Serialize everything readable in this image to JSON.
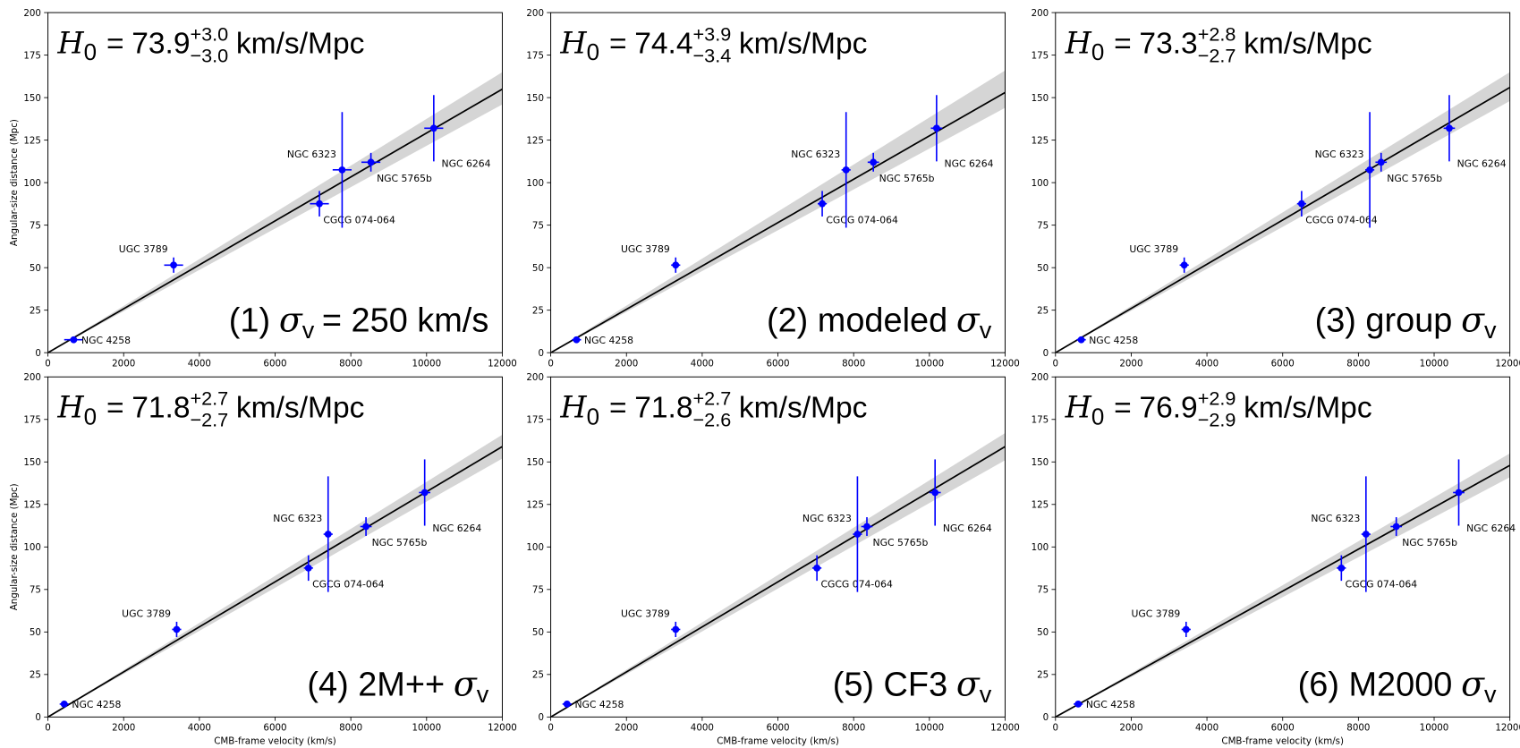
{
  "common": {
    "h0_symbol": "H",
    "h0_symbol_sub": "0",
    "equals": "=",
    "unit": "km/s/Mpc",
    "sigma": "σ",
    "sigma_sub": "v"
  },
  "chart_data": [
    {
      "type": "scatter",
      "h0": 73.9,
      "h0_plus": "+3.0",
      "h0_minus": "−3.0",
      "panel_label": "(1)",
      "label_suffix": "= 250 km/s",
      "y_label": "Angular-size distance (Mpc)",
      "names": [
        "NGC 4258",
        "UGC 3789",
        "CGCG 074-064",
        "NGC 6323",
        "NGC 5765b",
        "NGC 6264"
      ],
      "x": [
        680,
        3320,
        7170,
        7770,
        8530,
        10190
      ],
      "xerr": [
        250,
        250,
        250,
        250,
        250,
        250
      ],
      "y": [
        7.6,
        51.5,
        87.6,
        107.5,
        112,
        132
      ],
      "yerr": [
        0.3,
        4.5,
        7.5,
        34,
        5.5,
        19.5
      ],
      "fit_x": [
        0,
        12000
      ],
      "fit_y": [
        0,
        155
      ],
      "band_end": [
        146,
        165
      ],
      "color": "#0000ff",
      "fit_color": "#000000",
      "band_color": "#888888",
      "xlim": [
        0,
        12000
      ],
      "ylim": [
        0,
        200
      ],
      "xticks": [
        0,
        2000,
        4000,
        6000,
        8000,
        10000,
        12000
      ],
      "yticks": [
        0,
        25,
        50,
        75,
        100,
        125,
        150,
        175,
        200
      ]
    },
    {
      "type": "scatter",
      "h0": 74.4,
      "h0_plus": "+3.9",
      "h0_minus": "−3.4",
      "panel_label": "(2) modeled",
      "names": [
        "NGC 4258",
        "UGC 3789",
        "CGCG 074-064",
        "NGC 6323",
        "NGC 5765b",
        "NGC 6264"
      ],
      "x": [
        680,
        3300,
        7170,
        7800,
        8520,
        10190
      ],
      "xerr": [
        120,
        120,
        120,
        120,
        150,
        150
      ],
      "y": [
        7.6,
        51.5,
        87.6,
        107.5,
        112,
        132
      ],
      "yerr": [
        0.3,
        4.5,
        7.5,
        34,
        5.5,
        19.5
      ],
      "fit_x": [
        0,
        12000
      ],
      "fit_y": [
        0,
        153
      ],
      "band_end": [
        144,
        166
      ],
      "color": "#0000ff",
      "fit_color": "#000000",
      "band_color": "#888888",
      "xlim": [
        0,
        12000
      ],
      "ylim": [
        0,
        200
      ],
      "xticks": [
        0,
        2000,
        4000,
        6000,
        8000,
        10000,
        12000
      ],
      "yticks": [
        0,
        25,
        50,
        75,
        100,
        125,
        150,
        175,
        200
      ]
    },
    {
      "type": "scatter",
      "h0": 73.3,
      "h0_plus": "+2.8",
      "h0_minus": "−2.7",
      "panel_label": "(3) group",
      "names": [
        "NGC 4258",
        "UGC 3789",
        "CGCG 074-064",
        "NGC 6323",
        "NGC 5765b",
        "NGC 6264"
      ],
      "x": [
        680,
        3400,
        6500,
        8300,
        8600,
        10400
      ],
      "xerr": [
        120,
        120,
        120,
        120,
        150,
        150
      ],
      "y": [
        7.6,
        51.5,
        87.6,
        107.5,
        112,
        132
      ],
      "yerr": [
        0.3,
        4.5,
        7.5,
        34,
        5.5,
        19.5
      ],
      "fit_x": [
        0,
        12000
      ],
      "fit_y": [
        0,
        156
      ],
      "band_end": [
        148,
        165
      ],
      "color": "#0000ff",
      "fit_color": "#000000",
      "band_color": "#888888",
      "xlim": [
        0,
        12000
      ],
      "ylim": [
        0,
        200
      ],
      "xticks": [
        0,
        2000,
        4000,
        6000,
        8000,
        10000,
        12000
      ],
      "yticks": [
        0,
        25,
        50,
        75,
        100,
        125,
        150,
        175,
        200
      ]
    },
    {
      "type": "scatter",
      "h0": 71.8,
      "h0_plus": "+2.7",
      "h0_minus": "−2.7",
      "panel_label": "(4) 2M++",
      "x_label": "CMB-frame velocity (km/s)",
      "y_label": "Angular-size distance (Mpc)",
      "names": [
        "NGC 4258",
        "UGC 3789",
        "CGCG 074-064",
        "NGC 6323",
        "NGC 5765b",
        "NGC 6264"
      ],
      "x": [
        430,
        3400,
        6880,
        7400,
        8400,
        9950
      ],
      "xerr": [
        120,
        120,
        120,
        120,
        150,
        150
      ],
      "y": [
        7.6,
        51.5,
        87.6,
        107.5,
        112,
        132
      ],
      "yerr": [
        0.3,
        4.5,
        7.5,
        34,
        5.5,
        19.5
      ],
      "fit_x": [
        0,
        12000
      ],
      "fit_y": [
        0,
        159
      ],
      "band_end": [
        152,
        166
      ],
      "color": "#0000ff",
      "fit_color": "#000000",
      "band_color": "#888888",
      "xlim": [
        0,
        12000
      ],
      "ylim": [
        0,
        200
      ],
      "xticks": [
        0,
        2000,
        4000,
        6000,
        8000,
        10000,
        12000
      ],
      "yticks": [
        0,
        25,
        50,
        75,
        100,
        125,
        150,
        175,
        200
      ]
    },
    {
      "type": "scatter",
      "h0": 71.8,
      "h0_plus": "+2.7",
      "h0_minus": "−2.6",
      "panel_label": "(5) CF3",
      "x_label": "CMB-frame velocity (km/s)",
      "names": [
        "NGC 4258",
        "UGC 3789",
        "CGCG 074-064",
        "NGC 6323",
        "NGC 5765b",
        "NGC 6264"
      ],
      "x": [
        430,
        3300,
        7030,
        8100,
        8350,
        10150
      ],
      "xerr": [
        120,
        120,
        120,
        120,
        150,
        150
      ],
      "y": [
        7.6,
        51.5,
        87.6,
        107.5,
        112,
        132
      ],
      "yerr": [
        0.3,
        4.5,
        7.5,
        34,
        5.5,
        19.5
      ],
      "fit_x": [
        0,
        12000
      ],
      "fit_y": [
        0,
        159
      ],
      "band_end": [
        151,
        167
      ],
      "color": "#0000ff",
      "fit_color": "#000000",
      "band_color": "#888888",
      "xlim": [
        0,
        12000
      ],
      "ylim": [
        0,
        200
      ],
      "xticks": [
        0,
        2000,
        4000,
        6000,
        8000,
        10000,
        12000
      ],
      "yticks": [
        0,
        25,
        50,
        75,
        100,
        125,
        150,
        175,
        200
      ]
    },
    {
      "type": "scatter",
      "h0": 76.9,
      "h0_plus": "+2.9",
      "h0_minus": "−2.9",
      "panel_label": "(6) M2000",
      "x_label": "CMB-frame velocity (km/s)",
      "names": [
        "NGC 4258",
        "UGC 3789",
        "CGCG 074-064",
        "NGC 6323",
        "NGC 5765b",
        "NGC 6264"
      ],
      "x": [
        600,
        3450,
        7550,
        8200,
        9000,
        10650
      ],
      "xerr": [
        120,
        120,
        120,
        120,
        150,
        150
      ],
      "y": [
        7.6,
        51.5,
        87.6,
        107.5,
        112,
        132
      ],
      "yerr": [
        0.3,
        4.5,
        7.5,
        34,
        5.5,
        19.5
      ],
      "fit_x": [
        0,
        12000
      ],
      "fit_y": [
        0,
        148
      ],
      "band_end": [
        141,
        155
      ],
      "color": "#0000ff",
      "fit_color": "#000000",
      "band_color": "#888888",
      "xlim": [
        0,
        12000
      ],
      "ylim": [
        0,
        200
      ],
      "xticks": [
        0,
        2000,
        4000,
        6000,
        8000,
        10000,
        12000
      ],
      "yticks": [
        0,
        25,
        50,
        75,
        100,
        125,
        150,
        175,
        200
      ]
    }
  ]
}
